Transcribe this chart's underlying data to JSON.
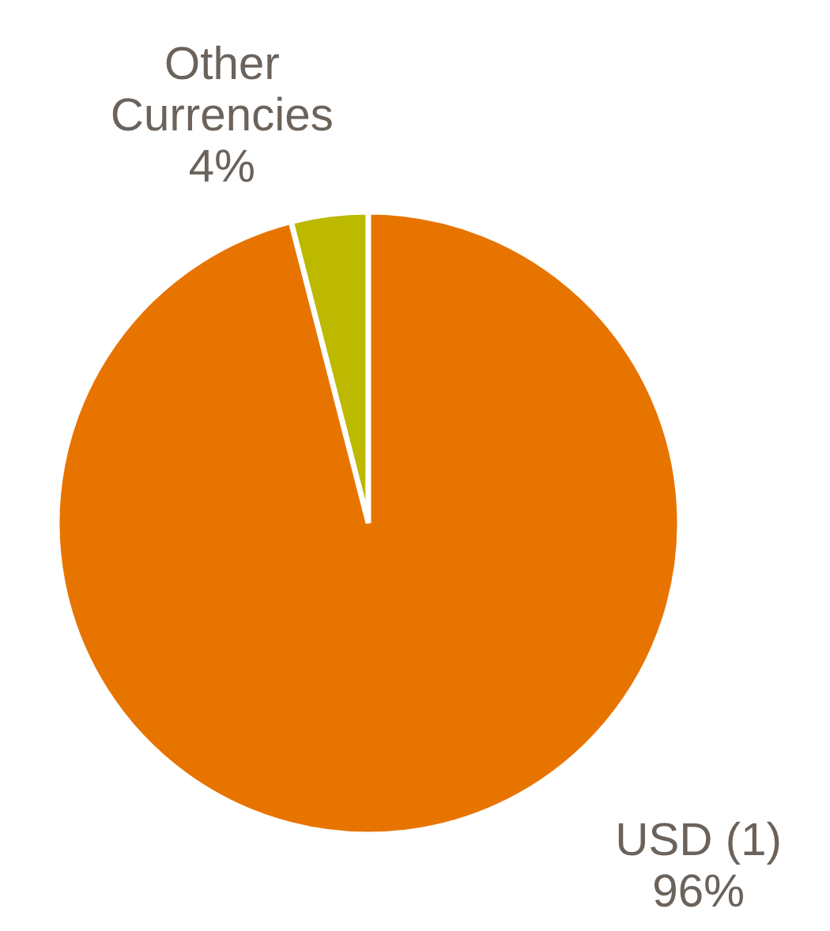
{
  "chart_data": {
    "type": "pie",
    "categories": [
      "Other\nCurrencies",
      "USD (1)"
    ],
    "values": [
      4,
      96
    ],
    "value_labels": [
      "4%",
      "96%"
    ],
    "colors": [
      "#bdb800",
      "#e87400"
    ],
    "legend": false
  }
}
